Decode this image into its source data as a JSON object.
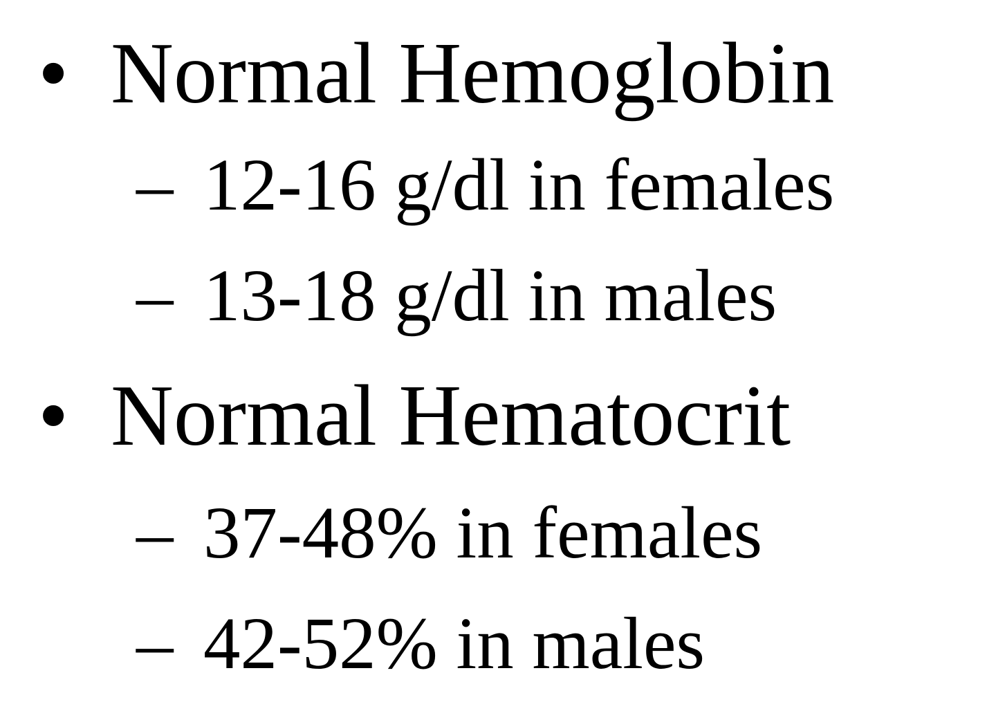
{
  "page": {
    "background_color": "#ffffff",
    "text_color": "#000000"
  },
  "slide": {
    "items": [
      {
        "level": 1,
        "marker": "•",
        "text": "Normal Hemoglobin"
      },
      {
        "level": 2,
        "marker": "–",
        "text": "12-16 g/dl in females"
      },
      {
        "level": 2,
        "marker": "–",
        "text": "13-18 g/dl in males"
      },
      {
        "level": 1,
        "marker": "•",
        "text": "Normal Hematocrit"
      },
      {
        "level": 2,
        "marker": "–",
        "text": "37-48% in females"
      },
      {
        "level": 2,
        "marker": "–",
        "text": "42-52% in males"
      }
    ]
  }
}
